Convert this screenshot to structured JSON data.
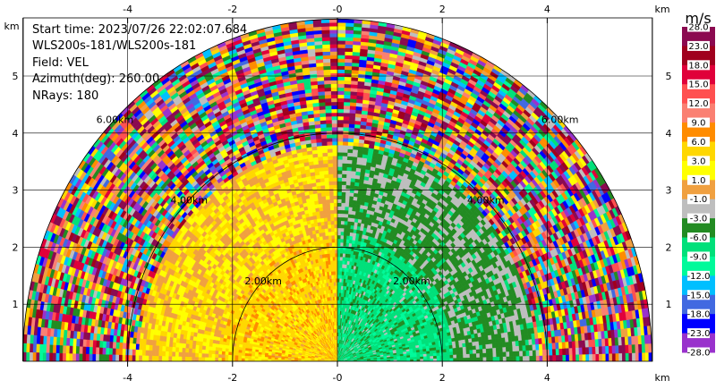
{
  "info": {
    "start_time": "Start time: 2023/07/26 22:02:07.684",
    "instrument": "WLS200s-181/WLS200s-181",
    "field": "Field: VEL",
    "azimuth": "Azimuth(deg): 260.00",
    "nrays": "NRays: 180"
  },
  "chart_data": {
    "type": "heatmap",
    "projection": "polar-rhi",
    "field": "VEL",
    "units": "m/s",
    "xlim": [
      -6,
      6
    ],
    "ylim": [
      0,
      6
    ],
    "x_unit_label": "km",
    "y_unit_label": "km",
    "x_ticks": [
      -4,
      -2,
      0,
      2,
      4
    ],
    "x_tick_labels": [
      "-4",
      "-2",
      "-0",
      "2",
      "4"
    ],
    "y_ticks": [
      1,
      2,
      3,
      4,
      5
    ],
    "grid": true,
    "range_rings_km": [
      2,
      4,
      6
    ],
    "range_ring_labels": [
      "2.00km",
      "4.00km",
      "6.00km"
    ],
    "max_range_km": 6,
    "colorbar": {
      "label": "m/s",
      "bounds": [
        28.0,
        23.0,
        18.0,
        15.0,
        12.0,
        9.0,
        6.0,
        3.0,
        1.0,
        -1.0,
        -3.0,
        -6.0,
        -9.0,
        -12.0,
        -15.0,
        -18.0,
        -23.0,
        -28.0
      ],
      "labels": [
        "28.0",
        "23.0",
        "18.0",
        "15.0",
        "12.0",
        "9.0",
        "6.0",
        "3.0",
        "1.0",
        "-1.0",
        "-3.0",
        "-6.0",
        "-9.0",
        "-12.0",
        "-15.0",
        "-18.0",
        "-23.0",
        "-28.0"
      ],
      "colors": [
        "#8b0a50",
        "#a0001e",
        "#e0003a",
        "#ff5050",
        "#fa8072",
        "#ff8c00",
        "#ffd700",
        "#ffff00",
        "#f0a040",
        "#bebebe",
        "#228b22",
        "#00e07a",
        "#00fa9a",
        "#00bfff",
        "#4169e1",
        "#0000ff",
        "#9932cc",
        "#8b0a50"
      ]
    },
    "regions": [
      {
        "side": "left",
        "r_range_km": [
          0,
          2.2
        ],
        "velocity_m_s": 4.5
      },
      {
        "side": "left",
        "r_range_km": [
          2.2,
          3.8
        ],
        "velocity_m_s": 2.0
      },
      {
        "side": "right",
        "r_range_km": [
          0,
          2.2
        ],
        "velocity_m_s": -7.5
      },
      {
        "side": "right",
        "r_range_km": [
          2.2,
          3.8
        ],
        "velocity_m_s": -4.0
      },
      {
        "side": "both",
        "r_range_km": [
          3.8,
          6.0
        ],
        "velocity_m_s": "noise"
      }
    ]
  }
}
